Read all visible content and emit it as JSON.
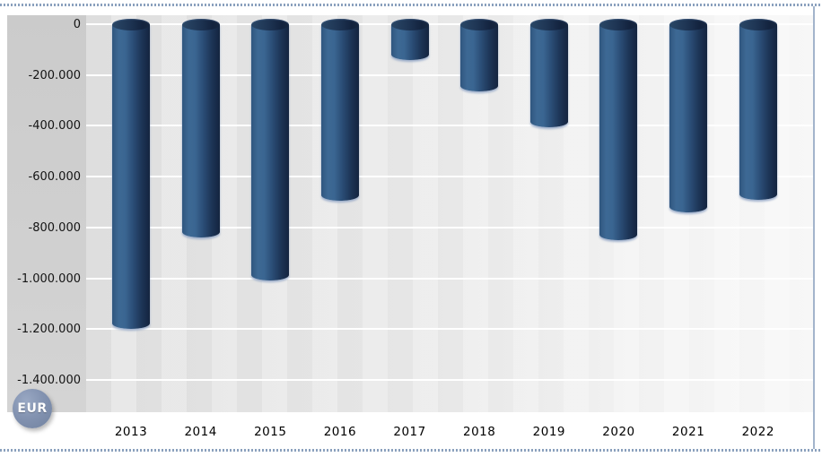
{
  "chart_data": {
    "type": "bar",
    "title": "",
    "unit_badge": "EUR",
    "categories": [
      "2013",
      "2014",
      "2015",
      "2016",
      "2017",
      "2018",
      "2019",
      "2020",
      "2021",
      "2022"
    ],
    "values": [
      -1200000,
      -840000,
      -1010000,
      -695000,
      -140000,
      -265000,
      -405000,
      -850000,
      -740000,
      -690000
    ],
    "xlabel": "",
    "ylabel": "",
    "ylim": [
      -1400000,
      0
    ],
    "ytick_step": 200000,
    "ytick_labels": [
      "0",
      "-200.000",
      "-400.000",
      "-600.000",
      "-800.000",
      "-1.000.000",
      "-1.200.000",
      "-1.400.000"
    ],
    "grid": true,
    "legend_position": "none",
    "orientation": "vertical-negative",
    "bar_style": "3d-cylinder"
  },
  "colors": {
    "bar_main": "#2d5181",
    "bar_dark_edge": "#14243f",
    "bar_top_cap": "#1e3554",
    "plot_bg_left": "#dedede",
    "plot_bg_right": "#f7f7f7",
    "axis_panel_bg": "#cdcdcd",
    "grid_line": "#ffffff",
    "dotted_border": "#8aa0bd",
    "right_border": "#a3b4cb",
    "badge_bg": "#8393b1",
    "badge_text": "#ffffff",
    "tick_text": "#141414"
  }
}
